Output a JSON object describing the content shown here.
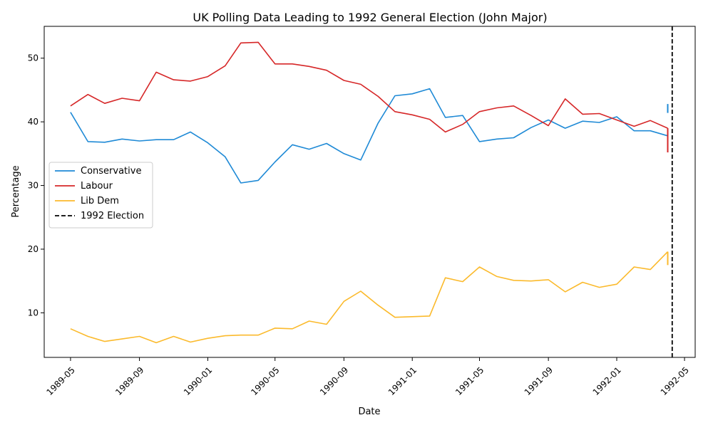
{
  "chart_data": {
    "type": "line",
    "title": "UK Polling Data Leading to 1992 General Election (John Major)",
    "xlabel": "Date",
    "ylabel": "Percentage",
    "xlim": [
      "1989-03-15",
      "1992-05-20"
    ],
    "ylim": [
      3,
      55
    ],
    "grid": false,
    "legend_position": "center-left",
    "x_ticks": [
      "1989-05",
      "1989-09",
      "1990-01",
      "1990-05",
      "1990-09",
      "1991-01",
      "1991-05",
      "1991-09",
      "1992-01",
      "1992-05"
    ],
    "y_ticks": [
      10,
      20,
      30,
      40,
      50
    ],
    "x": [
      "1989-05-01",
      "1989-06-01",
      "1989-07-01",
      "1989-08-01",
      "1989-09-01",
      "1989-10-01",
      "1989-11-01",
      "1989-12-01",
      "1990-01-01",
      "1990-02-01",
      "1990-03-01",
      "1990-04-01",
      "1990-05-01",
      "1990-06-01",
      "1990-07-01",
      "1990-08-01",
      "1990-09-01",
      "1990-10-01",
      "1990-11-01",
      "1990-12-01",
      "1991-01-01",
      "1991-02-01",
      "1991-03-01",
      "1991-04-01",
      "1991-05-01",
      "1991-06-01",
      "1991-07-01",
      "1991-08-01",
      "1991-09-01",
      "1991-10-01",
      "1991-11-01",
      "1991-12-01",
      "1992-01-01",
      "1992-02-01",
      "1992-03-01",
      "1992-04-01"
    ],
    "series": [
      {
        "name": "Conservative",
        "color": "#1f8ad6",
        "values": [
          41.5,
          36.9,
          36.8,
          37.3,
          37.0,
          37.2,
          37.2,
          38.4,
          36.7,
          34.5,
          30.4,
          30.8,
          33.7,
          36.4,
          35.7,
          36.6,
          35.0,
          34.0,
          39.8,
          44.1,
          44.4,
          45.2,
          40.7,
          41.0,
          36.9,
          37.3,
          37.5,
          39.1,
          40.3,
          39.0,
          40.1,
          39.9,
          40.8,
          38.6,
          38.6,
          37.8
        ],
        "final_segment": {
          "date": "1992-04-01",
          "from": 42.8,
          "to": 41.4
        }
      },
      {
        "name": "Labour",
        "color": "#d62728",
        "values": [
          42.5,
          44.3,
          42.9,
          43.7,
          43.3,
          47.8,
          46.6,
          46.4,
          47.1,
          48.8,
          52.4,
          52.5,
          49.1,
          49.1,
          48.7,
          48.1,
          46.5,
          45.9,
          44.0,
          41.6,
          41.1,
          40.4,
          38.4,
          39.6,
          41.6,
          42.2,
          42.5,
          41.0,
          39.4,
          43.6,
          41.2,
          41.3,
          40.3,
          39.3,
          40.2,
          39.0
        ],
        "final_segment": {
          "date": "1992-04-01",
          "from": 39.0,
          "to": 35.2
        }
      },
      {
        "name": "Lib Dem",
        "color": "#fbba2c",
        "values": [
          7.5,
          6.3,
          5.5,
          5.9,
          6.3,
          5.3,
          6.3,
          5.4,
          6.0,
          6.4,
          6.5,
          6.5,
          7.6,
          7.5,
          8.7,
          8.2,
          11.8,
          13.4,
          11.2,
          9.3,
          9.4,
          9.5,
          15.5,
          14.9,
          17.2,
          15.7,
          15.1,
          15.0,
          15.2,
          13.3,
          14.8,
          14.0,
          14.5,
          17.2,
          16.8,
          19.6
        ],
        "final_segment": {
          "date": "1992-04-01",
          "from": 19.6,
          "to": 17.5
        }
      }
    ],
    "vline": {
      "label": "1992 Election",
      "date": "1992-04-09",
      "color": "#000000",
      "style": "dashed"
    }
  }
}
